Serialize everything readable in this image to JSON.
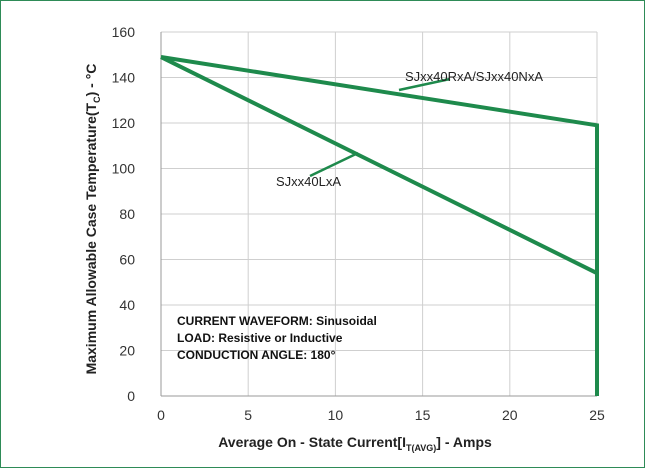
{
  "chart_data": {
    "type": "line",
    "title": "",
    "xlabel": "Average On   - State Current[",
    "xlabel_symbol": "I",
    "xlabel_sub": "T(AVG)",
    "xlabel_suffix": "] - Amps",
    "ylabel": "Maximum Allowable  Case Temperature(",
    "ylabel_symbol": "T",
    "ylabel_sub": "C",
    "ylabel_suffix": ") - °C",
    "xlim": [
      0,
      25
    ],
    "ylim": [
      0,
      160
    ],
    "x_ticks": [
      0,
      5,
      10,
      15,
      20,
      25
    ],
    "y_ticks": [
      0,
      20,
      40,
      60,
      80,
      100,
      120,
      140,
      160
    ],
    "grid": true,
    "line_color": "#1e8a4c",
    "series": [
      {
        "name": "SJxx40RxA/SJxx40NxA",
        "x": [
          0,
          25,
          25
        ],
        "y": [
          149,
          119,
          0
        ]
      },
      {
        "name": "SJxx40LxA",
        "x": [
          0,
          25,
          25
        ],
        "y": [
          149,
          54,
          0
        ]
      }
    ],
    "annotations": [
      "CURRENT WAVEFORM: Sinusoidal",
      "LOAD: Resistive or Inductive",
      "CONDUCTION ANGLE: 180°"
    ]
  }
}
